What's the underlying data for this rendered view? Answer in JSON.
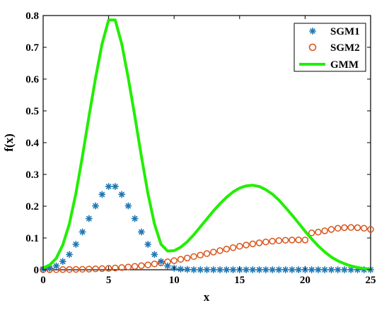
{
  "chart_data": {
    "type": "line",
    "xlabel": "x",
    "ylabel": "f(x)",
    "xlim": [
      0,
      25
    ],
    "ylim": [
      0,
      0.8
    ],
    "xticks": [
      0,
      5,
      10,
      15,
      20,
      25
    ],
    "yticks": [
      0,
      0.1,
      0.2,
      0.3,
      0.4,
      0.5,
      0.6,
      0.7,
      0.8
    ],
    "ytick_labels": [
      "0",
      "0.1",
      "0.2",
      "0.3",
      "0.4",
      "0.5",
      "0.6",
      "0.7",
      "0.8"
    ],
    "grid": false,
    "legend_position": "top-right",
    "colors": {
      "sgm1": "#1f77b4",
      "sgm2": "#d95319",
      "gmm": "#22ee00"
    },
    "x_markers": [
      0,
      0.5,
      1,
      1.5,
      2,
      2.5,
      3,
      3.5,
      4,
      4.5,
      5,
      5.5,
      6,
      6.5,
      7,
      7.5,
      8,
      8.5,
      9,
      9.5,
      10,
      10.5,
      11,
      11.5,
      12,
      12.5,
      13,
      13.5,
      14,
      14.5,
      15,
      15.5,
      16,
      16.5,
      17,
      17.5,
      18,
      18.5,
      19,
      19.5,
      20,
      20.5,
      21,
      21.5,
      22,
      22.5,
      23,
      23.5,
      24,
      24.5,
      25
    ],
    "series": [
      {
        "name": "SGM1",
        "marker": "asterisk",
        "values": [
          0.002,
          0.005,
          0.012,
          0.026,
          0.048,
          0.08,
          0.119,
          0.161,
          0.201,
          0.237,
          0.262,
          0.262,
          0.237,
          0.201,
          0.161,
          0.119,
          0.08,
          0.048,
          0.026,
          0.012,
          0.005,
          0.002,
          0.001,
          0,
          0,
          0,
          0,
          0,
          0,
          0,
          0,
          0,
          0,
          0,
          0,
          0,
          0,
          0,
          0,
          0,
          0,
          0,
          0,
          0,
          0,
          0,
          0,
          0,
          0,
          0,
          0
        ]
      },
      {
        "name": "SGM2",
        "marker": "circle",
        "values": [
          0.0002,
          0.0003,
          0.0004,
          0.0006,
          0.0008,
          0.0011,
          0.0015,
          0.002,
          0.0027,
          0.0035,
          0.0044,
          0.0056,
          0.007,
          0.0087,
          0.0106,
          0.0128,
          0.0154,
          0.0182,
          0.0214,
          0.0249,
          0.0287,
          0.0327,
          0.037,
          0.0415,
          0.0461,
          0.0508,
          0.0556,
          0.0603,
          0.065,
          0.0695,
          0.0738,
          0.0778,
          0.0814,
          0.0847,
          0.0875,
          0.0899,
          0.0916,
          0.0929,
          0.0936,
          0.0939,
          0.0937,
          0.116,
          0.1185,
          0.1225,
          0.127,
          0.1305,
          0.1325,
          0.133,
          0.1325,
          0.1305,
          0.127
        ]
      },
      {
        "name": "GMM",
        "marker": "line",
        "values": [
          0.006,
          0.015,
          0.036,
          0.078,
          0.144,
          0.24,
          0.357,
          0.483,
          0.603,
          0.711,
          0.786,
          0.786,
          0.711,
          0.603,
          0.483,
          0.357,
          0.24,
          0.144,
          0.08,
          0.059,
          0.06,
          0.071,
          0.088,
          0.11,
          0.135,
          0.16,
          0.185,
          0.208,
          0.228,
          0.245,
          0.257,
          0.264,
          0.266,
          0.262,
          0.252,
          0.238,
          0.219,
          0.196,
          0.172,
          0.147,
          0.121,
          0.097,
          0.075,
          0.056,
          0.04,
          0.028,
          0.019,
          0.012,
          0.007,
          0.004,
          0.002
        ]
      }
    ]
  }
}
